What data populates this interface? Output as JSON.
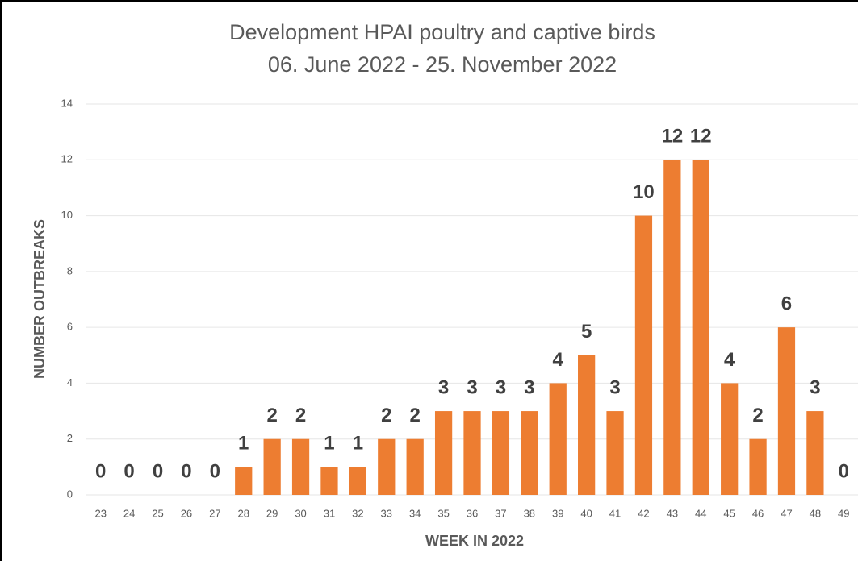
{
  "chart_data": {
    "type": "bar",
    "title": "Development HPAI poultry and captive birds",
    "subtitle": "06. June 2022 - 25. November 2022",
    "x_label": "WEEK IN 2022",
    "y_label": "NUMBER OUTBREAKS",
    "categories": [
      "23",
      "24",
      "25",
      "26",
      "27",
      "28",
      "29",
      "30",
      "31",
      "32",
      "33",
      "34",
      "35",
      "36",
      "37",
      "38",
      "39",
      "40",
      "41",
      "42",
      "43",
      "44",
      "45",
      "46",
      "47",
      "48",
      "49"
    ],
    "values": [
      0,
      0,
      0,
      0,
      0,
      1,
      2,
      2,
      1,
      1,
      2,
      2,
      3,
      3,
      3,
      3,
      4,
      5,
      3,
      10,
      12,
      12,
      4,
      2,
      6,
      3,
      0
    ],
    "color": "#ed7d31",
    "ylim": [
      0,
      14
    ],
    "yticks": [
      0,
      2,
      4,
      6,
      8,
      10,
      12,
      14
    ],
    "grid": true
  }
}
